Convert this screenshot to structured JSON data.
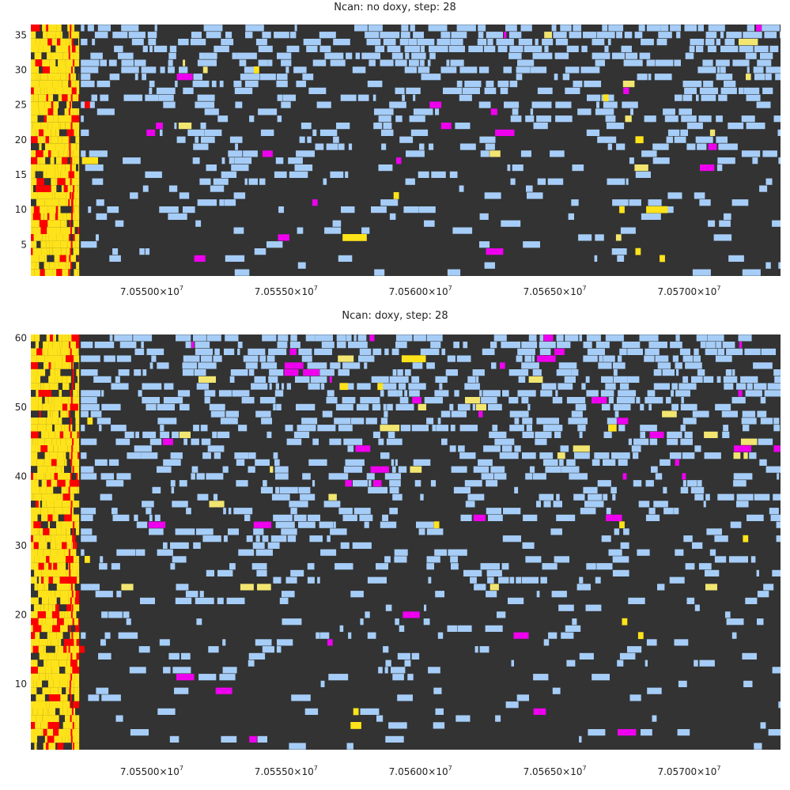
{
  "chart_data": [
    {
      "type": "heatmap",
      "title": "Ncan: no doxy, step: 28",
      "xlim": [
        70545500,
        70573400
      ],
      "ylim": [
        0.5,
        36.5
      ],
      "rows": 36,
      "xticks": [
        {
          "value": 70550000,
          "mantissa": "7.05500",
          "exp": "7"
        },
        {
          "value": 70555000,
          "mantissa": "7.05550",
          "exp": "7"
        },
        {
          "value": 70560000,
          "mantissa": "7.05600",
          "exp": "7"
        },
        {
          "value": 70565000,
          "mantissa": "7.05650",
          "exp": "7"
        },
        {
          "value": 70570000,
          "mantissa": "7.05700",
          "exp": "7"
        }
      ],
      "yticks": [
        5,
        10,
        15,
        20,
        25,
        30,
        35
      ],
      "colors": {
        "background": "#333333",
        "low": "#a6cdf7",
        "mid": "#f2e671",
        "accent": "#ee00ee",
        "high": "#ffe31a",
        "peak": "#ff0000"
      },
      "dense_region": [
        70545500,
        70547300
      ],
      "dense_level": "high",
      "cells": [
        {
          "x": 70557100,
          "x2": 70558000,
          "row": 6,
          "level": "high"
        },
        {
          "x": 70567400,
          "x2": 70567600,
          "row": 10,
          "level": "high"
        },
        {
          "x": 70568400,
          "x2": 70569200,
          "row": 10,
          "level": "high"
        },
        {
          "x": 70559000,
          "x2": 70559200,
          "row": 12,
          "level": "high"
        },
        {
          "x": 70568000,
          "x2": 70568300,
          "row": 20,
          "level": "high"
        },
        {
          "x": 70547400,
          "x2": 70548000,
          "row": 17,
          "level": "high"
        },
        {
          "x": 70547500,
          "x2": 70547700,
          "row": 25,
          "level": "peak"
        },
        {
          "x": 70553800,
          "x2": 70554000,
          "row": 30,
          "level": "high"
        },
        {
          "x": 70566800,
          "x2": 70567000,
          "row": 26,
          "level": "high"
        },
        {
          "x": 70568000,
          "x2": 70568200,
          "row": 4,
          "level": "high"
        },
        {
          "x": 70568900,
          "x2": 70569100,
          "row": 3,
          "level": "high"
        }
      ]
    },
    {
      "type": "heatmap",
      "title": "Ncan: doxy, step: 28",
      "xlim": [
        70545500,
        70573400
      ],
      "ylim": [
        0.5,
        60.5
      ],
      "rows": 60,
      "xticks": [
        {
          "value": 70550000,
          "mantissa": "7.05500",
          "exp": "7"
        },
        {
          "value": 70555000,
          "mantissa": "7.05550",
          "exp": "7"
        },
        {
          "value": 70560000,
          "mantissa": "7.05600",
          "exp": "7"
        },
        {
          "value": 70565000,
          "mantissa": "7.05650",
          "exp": "7"
        },
        {
          "value": 70570000,
          "mantissa": "7.05700",
          "exp": "7"
        }
      ],
      "yticks": [
        10,
        20,
        30,
        40,
        50,
        60
      ],
      "colors": {
        "background": "#333333",
        "low": "#a6cdf7",
        "mid": "#f2e671",
        "accent": "#ee00ee",
        "high": "#ffe31a",
        "peak": "#ff0000"
      },
      "dense_region": [
        70545500,
        70547300
      ],
      "dense_level": "high",
      "cells": [
        {
          "x": 70559300,
          "x2": 70560200,
          "row": 57,
          "level": "high"
        },
        {
          "x": 70557000,
          "x2": 70557300,
          "row": 53,
          "level": "high"
        },
        {
          "x": 70558400,
          "x2": 70558600,
          "row": 53,
          "level": "high"
        },
        {
          "x": 70567000,
          "x2": 70567300,
          "row": 47,
          "level": "high"
        },
        {
          "x": 70567400,
          "x2": 70567600,
          "row": 33,
          "level": "high"
        },
        {
          "x": 70560500,
          "x2": 70560700,
          "row": 33,
          "level": "high"
        },
        {
          "x": 70568100,
          "x2": 70568300,
          "row": 17,
          "level": "high"
        },
        {
          "x": 70567500,
          "x2": 70567700,
          "row": 19,
          "level": "high"
        },
        {
          "x": 70557500,
          "x2": 70557700,
          "row": 6,
          "level": "high"
        },
        {
          "x": 70557400,
          "x2": 70557800,
          "row": 4,
          "level": "high"
        },
        {
          "x": 70547500,
          "x2": 70547700,
          "row": 28,
          "level": "high"
        },
        {
          "x": 70547600,
          "x2": 70547800,
          "row": 48,
          "level": "high"
        },
        {
          "x": 70547300,
          "x2": 70547500,
          "row": 15,
          "level": "peak"
        },
        {
          "x": 70572000,
          "x2": 70572200,
          "row": 31,
          "level": "high"
        }
      ]
    }
  ]
}
